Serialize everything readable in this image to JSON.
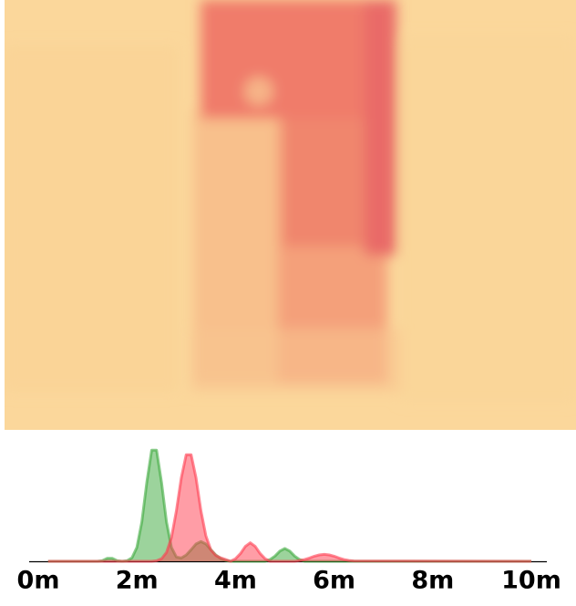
{
  "chart_data": {
    "type": "density",
    "x": [
      0.2,
      1.2,
      1.3,
      1.4,
      1.5,
      1.6,
      1.7,
      1.8,
      1.9,
      2.0,
      2.1,
      2.2,
      2.3,
      2.4,
      2.5,
      2.6,
      2.7,
      2.8,
      2.9,
      3.0,
      3.1,
      3.2,
      3.3,
      3.4,
      3.5,
      3.6,
      3.7,
      3.8,
      3.9,
      4.0,
      4.1,
      4.2,
      4.3,
      4.4,
      4.5,
      4.6,
      4.7,
      4.8,
      4.9,
      5.0,
      5.1,
      5.2,
      5.3,
      5.4,
      5.5,
      5.6,
      5.7,
      5.8,
      5.9,
      6.0,
      6.1,
      6.2,
      6.3,
      6.4,
      10.0
    ],
    "series": [
      {
        "color": "#3aa83a",
        "values": [
          0,
          0,
          0.005,
          0.026,
          0.026,
          0.005,
          0,
          0.005,
          0.03,
          0.12,
          0.339,
          0.677,
          0.958,
          0.958,
          0.677,
          0.339,
          0.12,
          0.037,
          0.028,
          0.054,
          0.1,
          0.15,
          0.17,
          0.15,
          0.1,
          0.054,
          0.023,
          0.007,
          0,
          0,
          0,
          0,
          0,
          0,
          0,
          0,
          0.015,
          0.045,
          0.088,
          0.11,
          0.088,
          0.045,
          0.015,
          0,
          0,
          0,
          0,
          0,
          0,
          0,
          0,
          0,
          0,
          0,
          0
        ]
      },
      {
        "color": "#ff3b4e",
        "values": [
          0,
          0,
          0,
          0,
          0,
          0,
          0,
          0,
          0,
          0,
          0,
          0,
          0,
          0.005,
          0.022,
          0.076,
          0.205,
          0.435,
          0.72,
          0.92,
          0.92,
          0.72,
          0.435,
          0.22,
          0.1,
          0.05,
          0.03,
          0.015,
          0,
          0.022,
          0.066,
          0.128,
          0.16,
          0.128,
          0.066,
          0.022,
          0,
          0,
          0,
          0,
          0,
          0,
          0.007,
          0.015,
          0.028,
          0.044,
          0.055,
          0.06,
          0.055,
          0.044,
          0.028,
          0.015,
          0.007,
          0.003,
          0
        ]
      }
    ],
    "xlim": [
      0,
      10
    ],
    "xticks": [
      {
        "value": 0,
        "label": "0m"
      },
      {
        "value": 2,
        "label": "2m"
      },
      {
        "value": 4,
        "label": "4m"
      },
      {
        "value": 6,
        "label": "6m"
      },
      {
        "value": 8,
        "label": "8m"
      },
      {
        "value": 10,
        "label": "10m"
      }
    ],
    "ylim": [
      0,
      1
    ]
  }
}
